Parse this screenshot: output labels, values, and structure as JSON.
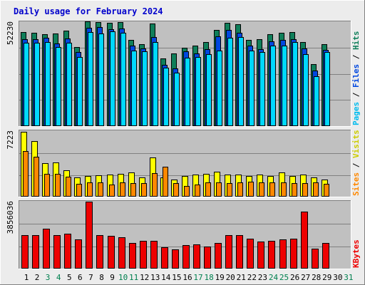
{
  "chart_data": {
    "type": "bar",
    "title": "Daily usage for February 2024",
    "x": [
      "1",
      "2",
      "3",
      "4",
      "5",
      "6",
      "7",
      "8",
      "9",
      "10",
      "11",
      "12",
      "13",
      "14",
      "15",
      "16",
      "17",
      "18",
      "19",
      "20",
      "21",
      "22",
      "23",
      "24",
      "25",
      "26",
      "27",
      "28",
      "29",
      "30",
      "31"
    ],
    "weekend_days": [
      "3",
      "4",
      "10",
      "11",
      "17",
      "18",
      "24",
      "25",
      "31"
    ],
    "days_with_data": 29,
    "colors": {
      "hits": "#0f7f5a",
      "files": "#0047e0",
      "pages": "#00d8ff",
      "visits": "#ffff00",
      "sites": "#ff8800",
      "kbytes": "#ee0000",
      "weekday_label": "#000000",
      "weekend_label": "#00804f",
      "title": "#0000cc",
      "plot_bg": "#c0c0c0"
    },
    "panels": [
      {
        "name": "hits-files-pages",
        "ymax": 52230,
        "ytick_label": "52230",
        "right_labels": [
          {
            "text": "Pages",
            "color": "#00bbee"
          },
          {
            "text": " / ",
            "color": "#000000"
          },
          {
            "text": "Files",
            "color": "#0047e0"
          },
          {
            "text": " / ",
            "color": "#000000"
          },
          {
            "text": "Hits",
            "color": "#0f7f5a"
          }
        ],
        "series": [
          {
            "name": "Hits",
            "color": "#0f7f5a",
            "values": [
              46940,
              46640,
              46000,
              46310,
              47570,
              39500,
              52230,
              51910,
              51600,
              51910,
              43160,
              40960,
              51280,
              33740,
              36270,
              39140,
              40270,
              41840,
              47890,
              51600,
              50650,
              43160,
              43470,
              45990,
              46630,
              46940,
              41800,
              30970,
              40960
            ]
          },
          {
            "name": "Files",
            "color": "#0047e0",
            "values": [
              43470,
              43470,
              44100,
              41220,
              43780,
              36900,
              49060,
              49370,
              48430,
              48760,
              40020,
              38790,
              44410,
              30530,
              28650,
              37170,
              36270,
              38490,
              44730,
              47890,
              46630,
              40020,
              38470,
              42210,
              43160,
              43470,
              38790,
              27750,
              38160
            ]
          },
          {
            "name": "Pages",
            "color": "#00d8ff",
            "values": [
              41530,
              41530,
              41840,
              39270,
              41530,
              34370,
              46940,
              46310,
              47250,
              46630,
              37820,
              37170,
              41840,
              29140,
              26600,
              34060,
              34370,
              35940,
              37820,
              44100,
              44410,
              37500,
              36900,
              40020,
              40020,
              41840,
              35940,
              24920,
              36900
            ]
          }
        ]
      },
      {
        "name": "visits-sites",
        "ymax": 7223,
        "ytick_label": "7223",
        "right_labels": [
          {
            "text": "Sites",
            "color": "#ff8800"
          },
          {
            "text": " / ",
            "color": "#000000"
          },
          {
            "text": "Visits",
            "color": "#cccc00"
          }
        ],
        "series": [
          {
            "name": "Visits",
            "color": "#ffff00",
            "values": [
              7223,
              6210,
              3730,
              3780,
              2940,
              2170,
              2280,
              2390,
              2440,
              2550,
              2660,
              2170,
              4340,
              2170,
              1900,
              2280,
              2440,
              2550,
              2760,
              2440,
              2440,
              2280,
              2440,
              2340,
              2660,
              2280,
              2440,
              2170,
              1900
            ]
          },
          {
            "name": "Sites",
            "color": "#ff8800",
            "values": [
              5060,
              4420,
              2530,
              2530,
              2260,
              1440,
              1580,
              1580,
              1360,
              1580,
              1540,
              1540,
              2580,
              3300,
              1540,
              1230,
              1330,
              1620,
              1620,
              1540,
              1580,
              1680,
              1580,
              1620,
              1580,
              1540,
              1540,
              1580,
              1440
            ]
          }
        ]
      },
      {
        "name": "kbytes",
        "ymax": 3856036,
        "ytick_label": "3856036",
        "right_labels": [
          {
            "text": "KBytes",
            "color": "#ee0000"
          }
        ],
        "series": [
          {
            "name": "KBytes",
            "color": "#ee0000",
            "values": [
              1927000,
              1927000,
              2317000,
              1927000,
              2005000,
              1693000,
              3856036,
              1927000,
              1888000,
              1810000,
              1459000,
              1615000,
              1615000,
              1225000,
              1108000,
              1342000,
              1381000,
              1264000,
              1459000,
              1927000,
              1927000,
              1732000,
              1576000,
              1615000,
              1693000,
              1732000,
              3300000,
              1147000,
              1459000
            ]
          }
        ]
      }
    ]
  }
}
